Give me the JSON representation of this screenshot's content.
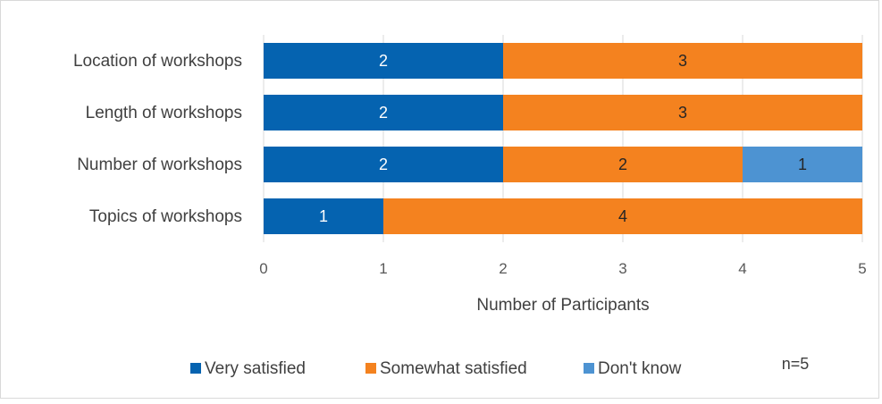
{
  "chart_data": {
    "type": "bar",
    "orientation": "horizontal",
    "stacked": true,
    "categories": [
      "Location of workshops",
      "Length of workshops",
      "Number of workshops",
      "Topics of workshops"
    ],
    "series": [
      {
        "name": "Very satisfied",
        "color": "#0563b0",
        "label_color": "#ffffff",
        "values": [
          2,
          2,
          2,
          1
        ]
      },
      {
        "name": "Somewhat satisfied",
        "color": "#f4821f",
        "label_color": "#262626",
        "values": [
          3,
          3,
          2,
          4
        ]
      },
      {
        "name": "Don't know",
        "color": "#4d93d2",
        "label_color": "#262626",
        "values": [
          0,
          0,
          1,
          0
        ]
      }
    ],
    "xlabel": "Number of Participants",
    "xlim": [
      0,
      5
    ],
    "xticks": [
      "0",
      "1",
      "2",
      "3",
      "4",
      "5"
    ],
    "grid": true,
    "legend_position": "bottom",
    "note": "n=5"
  }
}
